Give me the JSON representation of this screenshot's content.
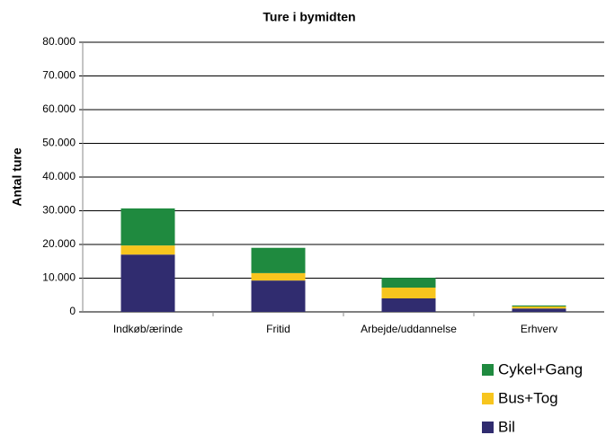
{
  "chart_data": {
    "type": "bar",
    "stacked": true,
    "title": "Ture i bymidten",
    "ylabel": "Antal ture",
    "categories": [
      "Indkøb/ærinde",
      "Fritid",
      "Arbejde/uddannelse",
      "Erhverv"
    ],
    "series": [
      {
        "name": "Bil",
        "color": "#302c6f",
        "values": [
          17000,
          9300,
          4000,
          1000
        ]
      },
      {
        "name": "Bus+Tog",
        "color": "#f7c51e",
        "values": [
          2700,
          2200,
          3200,
          600
        ]
      },
      {
        "name": "Cykel+Gang",
        "color": "#1f8a3f",
        "values": [
          11000,
          7500,
          2900,
          300
        ]
      }
    ],
    "ylim": [
      0,
      80000
    ],
    "yticks": [
      0,
      {
        "value": 10000,
        "label": "10.000"
      },
      {
        "value": 20000,
        "label": "20.000"
      },
      {
        "value": 30000,
        "label": "30.000"
      },
      {
        "value": 40000,
        "label": "40.000"
      },
      {
        "value": 50000,
        "label": "50.000"
      },
      {
        "value": 60000,
        "label": "60.000"
      },
      {
        "value": 70000,
        "label": "70.000"
      },
      {
        "value": 80000,
        "label": "80.000"
      }
    ],
    "grid": true,
    "legend": "lower right"
  }
}
